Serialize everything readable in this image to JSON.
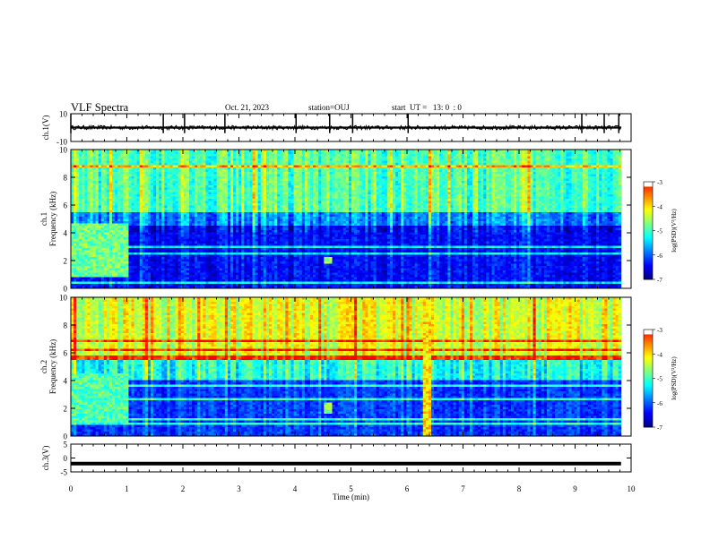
{
  "header": {
    "title": "VLF Spectra",
    "date": "Oct. 21, 2023",
    "station": "station=OUJ",
    "start": "start  UT =   13: 0  : 0"
  },
  "chart_data": [
    {
      "type": "line",
      "panel": "ch1-waveform",
      "ylabel": "ch.1(V)",
      "ylim": [
        -10,
        10
      ],
      "yticks": [
        "10",
        "-10"
      ],
      "x": [
        0,
        10
      ],
      "baseline": 0,
      "noise_amplitude": 1.5,
      "spikes_x_min": [
        0.0,
        1.65,
        2.03,
        2.75,
        4.02,
        4.62,
        5.03,
        6.02,
        9.12,
        9.52,
        9.78
      ]
    },
    {
      "type": "heatmap",
      "panel": "ch1-spectrogram",
      "ylabel": "ch.1  Frequency (kHz)",
      "ylim": [
        0,
        10
      ],
      "yticks": [
        "0",
        "2",
        "4",
        "6",
        "8",
        "10"
      ],
      "colorbar": {
        "label": "log(PSD)(V²/Hz)",
        "ticks": [
          "-3",
          "-4",
          "-5",
          "-6",
          "-7"
        ],
        "range": [
          -7,
          -3
        ]
      },
      "bands": [
        {
          "f_range_khz": [
            5.5,
            10
          ],
          "log_psd": -4.9
        },
        {
          "f_range_khz": [
            4.5,
            5.5
          ],
          "log_psd": -5.8
        },
        {
          "f_range_khz": [
            0,
            4.5
          ],
          "log_psd": -6.4
        }
      ],
      "features": [
        {
          "t_min": [
            0,
            1.05
          ],
          "f_range_khz": [
            0.8,
            4.6
          ],
          "log_psd": -4.8
        },
        {
          "t_min": [
            4.5,
            4.65
          ],
          "f_range_khz": [
            1.8,
            2.2
          ],
          "log_psd": -4.6
        }
      ]
    },
    {
      "type": "heatmap",
      "panel": "ch2-spectrogram",
      "ylabel": "ch.2  Frequency (kHz)",
      "ylim": [
        0,
        10
      ],
      "yticks": [
        "0",
        "2",
        "4",
        "6",
        "8",
        "10"
      ],
      "colorbar": {
        "label": "log(PSD)(V²/Hz)",
        "ticks": [
          "-3",
          "-4",
          "-5",
          "-6",
          "-7"
        ],
        "range": [
          -7,
          -3
        ]
      },
      "bands": [
        {
          "f_range_khz": [
            5.5,
            10
          ],
          "log_psd": -4.3
        },
        {
          "f_range_khz": [
            4.0,
            5.5
          ],
          "log_psd": -5.2
        },
        {
          "f_range_khz": [
            0,
            4.0
          ],
          "log_psd": -6.2
        }
      ],
      "features": [
        {
          "t_min": [
            0,
            1.05
          ],
          "f_range_khz": [
            1.0,
            4.5
          ],
          "log_psd": -4.9
        },
        {
          "t_min": [
            4.5,
            4.65
          ],
          "f_range_khz": [
            1.6,
            2.4
          ],
          "log_psd": -4.7
        },
        {
          "t_min": [
            6.3,
            6.45
          ],
          "f_range_khz": [
            0,
            10
          ],
          "log_psd": -4.0
        }
      ]
    },
    {
      "type": "line",
      "panel": "ch3-waveform",
      "ylabel": "ch.3(V)",
      "ylim": [
        -5,
        5
      ],
      "yticks": [
        "5",
        "0",
        "-5"
      ],
      "x": [
        0,
        10
      ],
      "constant_value": -2
    }
  ],
  "xaxis": {
    "label": "Time  (min)",
    "ticks": [
      "0",
      "1",
      "2",
      "3",
      "4",
      "5",
      "6",
      "7",
      "8",
      "9",
      "10"
    ],
    "range": [
      0,
      10
    ],
    "data_end_min": 9.82
  },
  "colors": {
    "background": "#ffffff",
    "colormap": [
      "#00007f",
      "#0000ff",
      "#007fff",
      "#00ffff",
      "#7fff7f",
      "#ffff00",
      "#ff7f00",
      "#ff0000",
      "#ffffff"
    ]
  }
}
